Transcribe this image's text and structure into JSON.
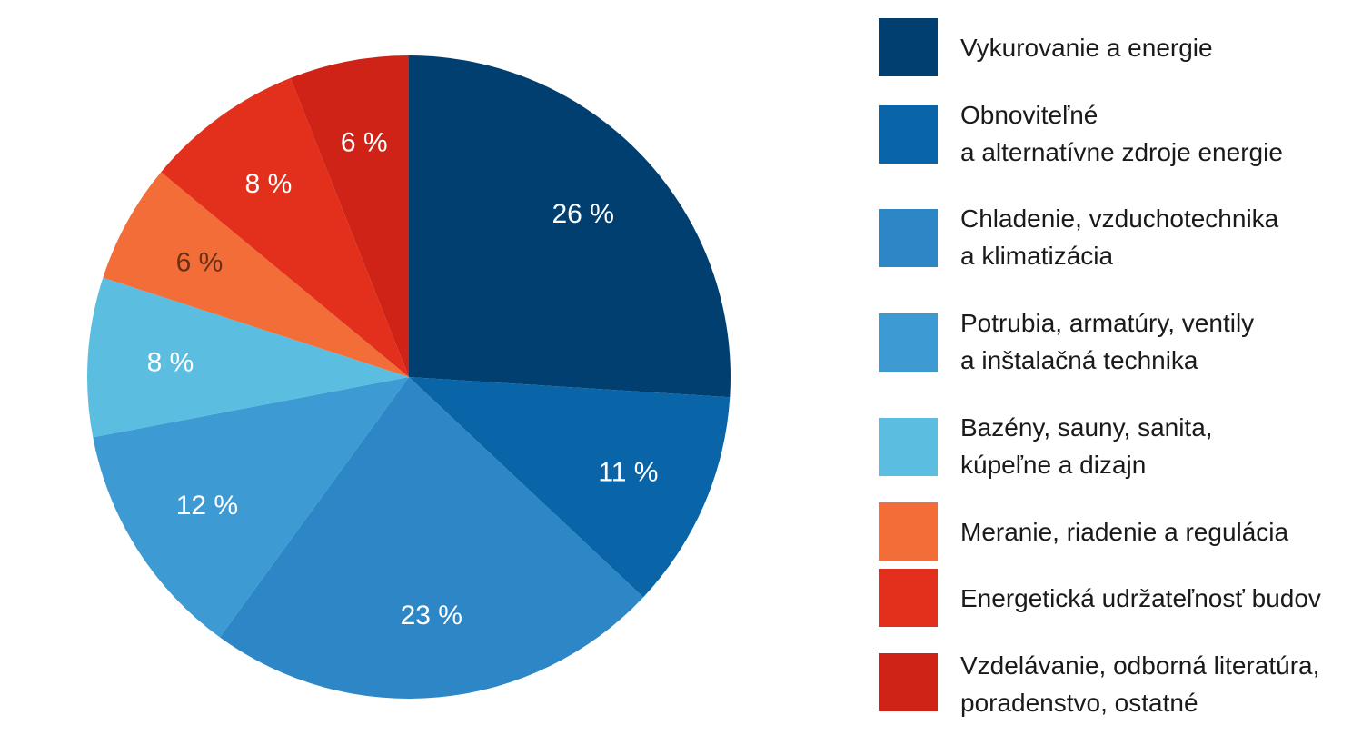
{
  "chart_data": {
    "type": "pie",
    "title": "",
    "values": [
      26,
      11,
      23,
      12,
      8,
      6,
      8,
      6
    ],
    "labels": [
      "26 %",
      "11 %",
      "23 %",
      "12 %",
      "8 %",
      "6 %",
      "8 %",
      "6 %"
    ],
    "colors": [
      "#003f6f",
      "#0a64a8",
      "#2d86c6",
      "#3e9ad3",
      "#5bbee0",
      "#f26d38",
      "#e2301d",
      "#cf2317"
    ],
    "label_colors": [
      "#ffffff",
      "#ffffff",
      "#ffffff",
      "#ffffff",
      "#ffffff",
      "#6b2f16",
      "#ffffff",
      "#ffffff"
    ],
    "start_angle_deg": 0,
    "direction": "clockwise",
    "legend": [
      {
        "lines": [
          "Vykurovanie a energie"
        ],
        "color": "#003f6f"
      },
      {
        "lines": [
          "Obnoviteľné",
          "a alternatívne zdroje energie"
        ],
        "color": "#0a64a8"
      },
      {
        "lines": [
          "Chladenie, vzduchotechnika",
          "a klimatizácia"
        ],
        "color": "#2d86c6"
      },
      {
        "lines": [
          "Potrubia, armatúry, ventily",
          "a inštalačná technika"
        ],
        "color": "#3e9ad3"
      },
      {
        "lines": [
          "Bazény, sauny, sanita,",
          "kúpeľne a dizajn"
        ],
        "color": "#5bbee0"
      },
      {
        "lines": [
          "Meranie, riadenie a regulácia"
        ],
        "color": "#f26d38"
      },
      {
        "lines": [
          "Energetická udržateľnosť budov"
        ],
        "color": "#e2301d"
      },
      {
        "lines": [
          "Vzdelávanie, odborná literatúra,",
          "poradenstvo, ostatné"
        ],
        "color": "#cf2317"
      }
    ],
    "legend_placement": "right"
  }
}
